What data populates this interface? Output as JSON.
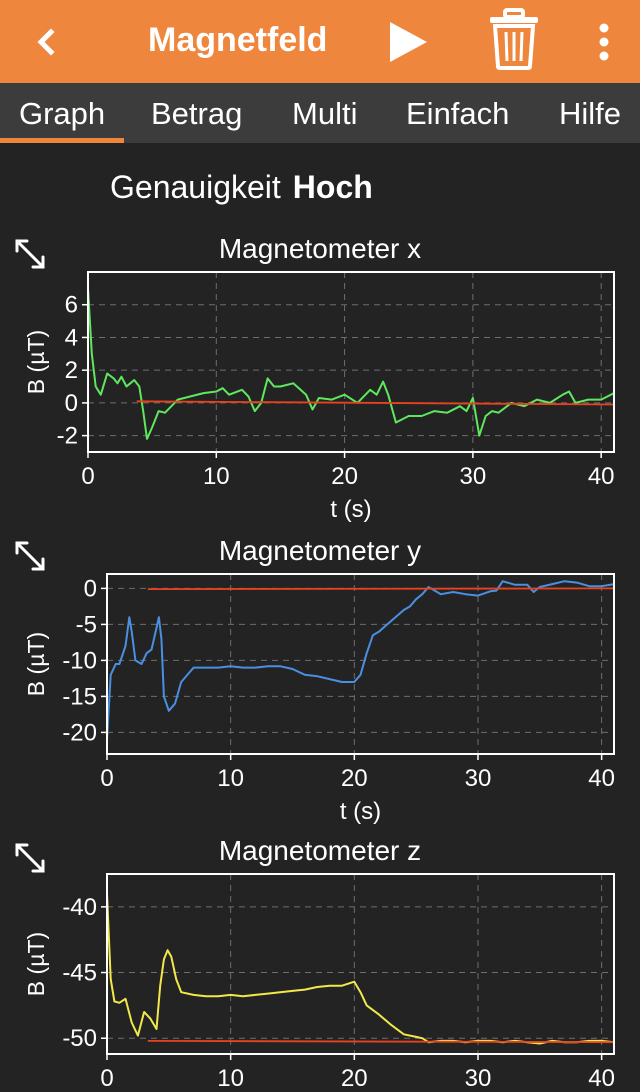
{
  "header": {
    "title": "Magnetfeld",
    "back_icon": "chevron-left-icon",
    "play_icon": "play-icon",
    "delete_icon": "trash-icon",
    "menu_icon": "more-vertical-icon"
  },
  "tabs": [
    {
      "label": "Graph",
      "active": true
    },
    {
      "label": "Betrag",
      "active": false
    },
    {
      "label": "Multi",
      "active": false
    },
    {
      "label": "Einfach",
      "active": false
    },
    {
      "label": "Hilfe",
      "active": false
    }
  ],
  "accuracy": {
    "label": "Genauigkeit",
    "value": "Hoch"
  },
  "colors": {
    "header": "#ee863d",
    "tabbar": "#3c3c3c",
    "background": "#232323",
    "reference": "#e8431e"
  },
  "chart_data": [
    {
      "type": "line",
      "title": "Magnetometer x",
      "xlabel": "t (s)",
      "ylabel": "B (µT)",
      "xlim": [
        0,
        41
      ],
      "ylim": [
        -3,
        8
      ],
      "xticks": [
        0,
        10,
        20,
        30,
        40
      ],
      "yticks": [
        -2,
        0,
        2,
        4,
        6
      ],
      "grid": true,
      "series": [
        {
          "color": "#5ee85e",
          "x": [
            0,
            0.3,
            0.6,
            1,
            1.5,
            2,
            2.3,
            2.6,
            3,
            3.3,
            3.6,
            4,
            4.3,
            4.6,
            5,
            5.5,
            6,
            6.5,
            7,
            8,
            9,
            10,
            10.5,
            11,
            12,
            12.5,
            13,
            13.5,
            14,
            14.5,
            15,
            16,
            17,
            17.5,
            18,
            19,
            20,
            21,
            22,
            22.5,
            23,
            23.4,
            24,
            25,
            26,
            27,
            28,
            29,
            29.5,
            30,
            30.5,
            31,
            31.5,
            32,
            33,
            34,
            35,
            36,
            37,
            37.5,
            38,
            39,
            40,
            41
          ],
          "y": [
            7,
            3,
            1,
            0.5,
            1.8,
            1.5,
            1.2,
            1.6,
            1,
            1.2,
            1.4,
            1,
            -0.5,
            -2.2,
            -1.5,
            -0.5,
            -0.6,
            -0.2,
            0.2,
            0.4,
            0.6,
            0.7,
            0.9,
            0.5,
            0.8,
            0.4,
            -0.5,
            0,
            1.5,
            1,
            1,
            1.2,
            0.5,
            -0.4,
            0.3,
            0.2,
            0.5,
            0,
            0.8,
            0.5,
            1.3,
            0.5,
            -1.2,
            -0.8,
            -0.8,
            -0.5,
            -0.6,
            -0.2,
            -0.5,
            0.3,
            -2,
            -0.8,
            -0.5,
            -0.6,
            0,
            -0.2,
            0.2,
            0,
            0.5,
            0.7,
            0,
            0.2,
            0.2,
            0.6
          ]
        },
        {
          "color": "#e8431e",
          "x": [
            3.8,
            41
          ],
          "y": [
            0.1,
            -0.1
          ]
        }
      ]
    },
    {
      "type": "line",
      "title": "Magnetometer y",
      "xlabel": "t (s)",
      "ylabel": "B (µT)",
      "xlim": [
        0,
        41
      ],
      "ylim": [
        -23,
        2
      ],
      "xticks": [
        0,
        10,
        20,
        30,
        40
      ],
      "yticks": [
        -20,
        -15,
        -10,
        -5,
        0
      ],
      "grid": true,
      "series": [
        {
          "color": "#4a90e2",
          "x": [
            0,
            0.3,
            0.7,
            1,
            1.5,
            1.8,
            2,
            2.3,
            2.8,
            3.2,
            3.6,
            4,
            4.2,
            4.4,
            4.6,
            5,
            5.5,
            6,
            7,
            8,
            9,
            10,
            11,
            12,
            13,
            14,
            15,
            16,
            17,
            18,
            19,
            20,
            20.5,
            21,
            21.5,
            22,
            23,
            24,
            24.5,
            25,
            25.5,
            26,
            27,
            28,
            29,
            30,
            31,
            31.5,
            32,
            33,
            34,
            34.5,
            35,
            36,
            37,
            38,
            39,
            40,
            41
          ],
          "y": [
            -21,
            -12,
            -10.5,
            -10.5,
            -8,
            -4,
            -6,
            -10,
            -10.5,
            -9,
            -8.5,
            -5.5,
            -4,
            -7,
            -15,
            -17,
            -16,
            -13,
            -11,
            -11,
            -11,
            -10.8,
            -11,
            -11,
            -10.8,
            -10.8,
            -11.2,
            -12,
            -12.2,
            -12.6,
            -13,
            -13,
            -12,
            -9,
            -6.5,
            -6,
            -4.5,
            -3,
            -2.5,
            -1.5,
            -0.8,
            0.2,
            -0.8,
            -0.5,
            -0.8,
            -1,
            -0.4,
            -0.3,
            1,
            0.5,
            0.5,
            -0.5,
            0.2,
            0.6,
            1,
            0.8,
            0.3,
            0.3,
            0.6
          ]
        },
        {
          "color": "#e8431e",
          "x": [
            3.3,
            41
          ],
          "y": [
            -0.1,
            0
          ]
        }
      ]
    },
    {
      "type": "line",
      "title": "Magnetometer z",
      "xlabel": "",
      "ylabel": "B (µT)",
      "xlim": [
        0,
        41
      ],
      "ylim": [
        -51.2,
        -37.5
      ],
      "xticks": [
        0,
        10,
        20,
        30,
        40
      ],
      "yticks": [
        -50,
        -45,
        -40
      ],
      "grid": true,
      "series": [
        {
          "color": "#f2e84a",
          "x": [
            0,
            0.3,
            0.6,
            1,
            1.5,
            2,
            2.5,
            3,
            3.5,
            4,
            4.3,
            4.6,
            4.9,
            5.2,
            5.6,
            6,
            7,
            8,
            9,
            10,
            11,
            12,
            13,
            14,
            15,
            16,
            17,
            18,
            19,
            20,
            20.5,
            21,
            22,
            23,
            24,
            25,
            25.5,
            26,
            27,
            28,
            29,
            30,
            31,
            32,
            33,
            34,
            35,
            36,
            37,
            38,
            39,
            40,
            41
          ],
          "y": [
            -39,
            -45.5,
            -47.2,
            -47.3,
            -47,
            -48.8,
            -49.8,
            -48,
            -48.5,
            -49.3,
            -46,
            -44,
            -43.3,
            -43.8,
            -45.5,
            -46.5,
            -46.7,
            -46.8,
            -46.8,
            -46.7,
            -46.8,
            -46.7,
            -46.6,
            -46.5,
            -46.4,
            -46.3,
            -46.1,
            -46,
            -46,
            -45.7,
            -46.5,
            -47.5,
            -48.2,
            -49,
            -49.7,
            -49.9,
            -50,
            -50.3,
            -50.2,
            -50.2,
            -50.3,
            -50.2,
            -50.2,
            -50.3,
            -50.2,
            -50.3,
            -50.4,
            -50.2,
            -50.3,
            -50.3,
            -50.2,
            -50.2,
            -50.3
          ]
        },
        {
          "color": "#e8431e",
          "x": [
            3.3,
            41
          ],
          "y": [
            -50.2,
            -50.3
          ]
        }
      ]
    }
  ]
}
